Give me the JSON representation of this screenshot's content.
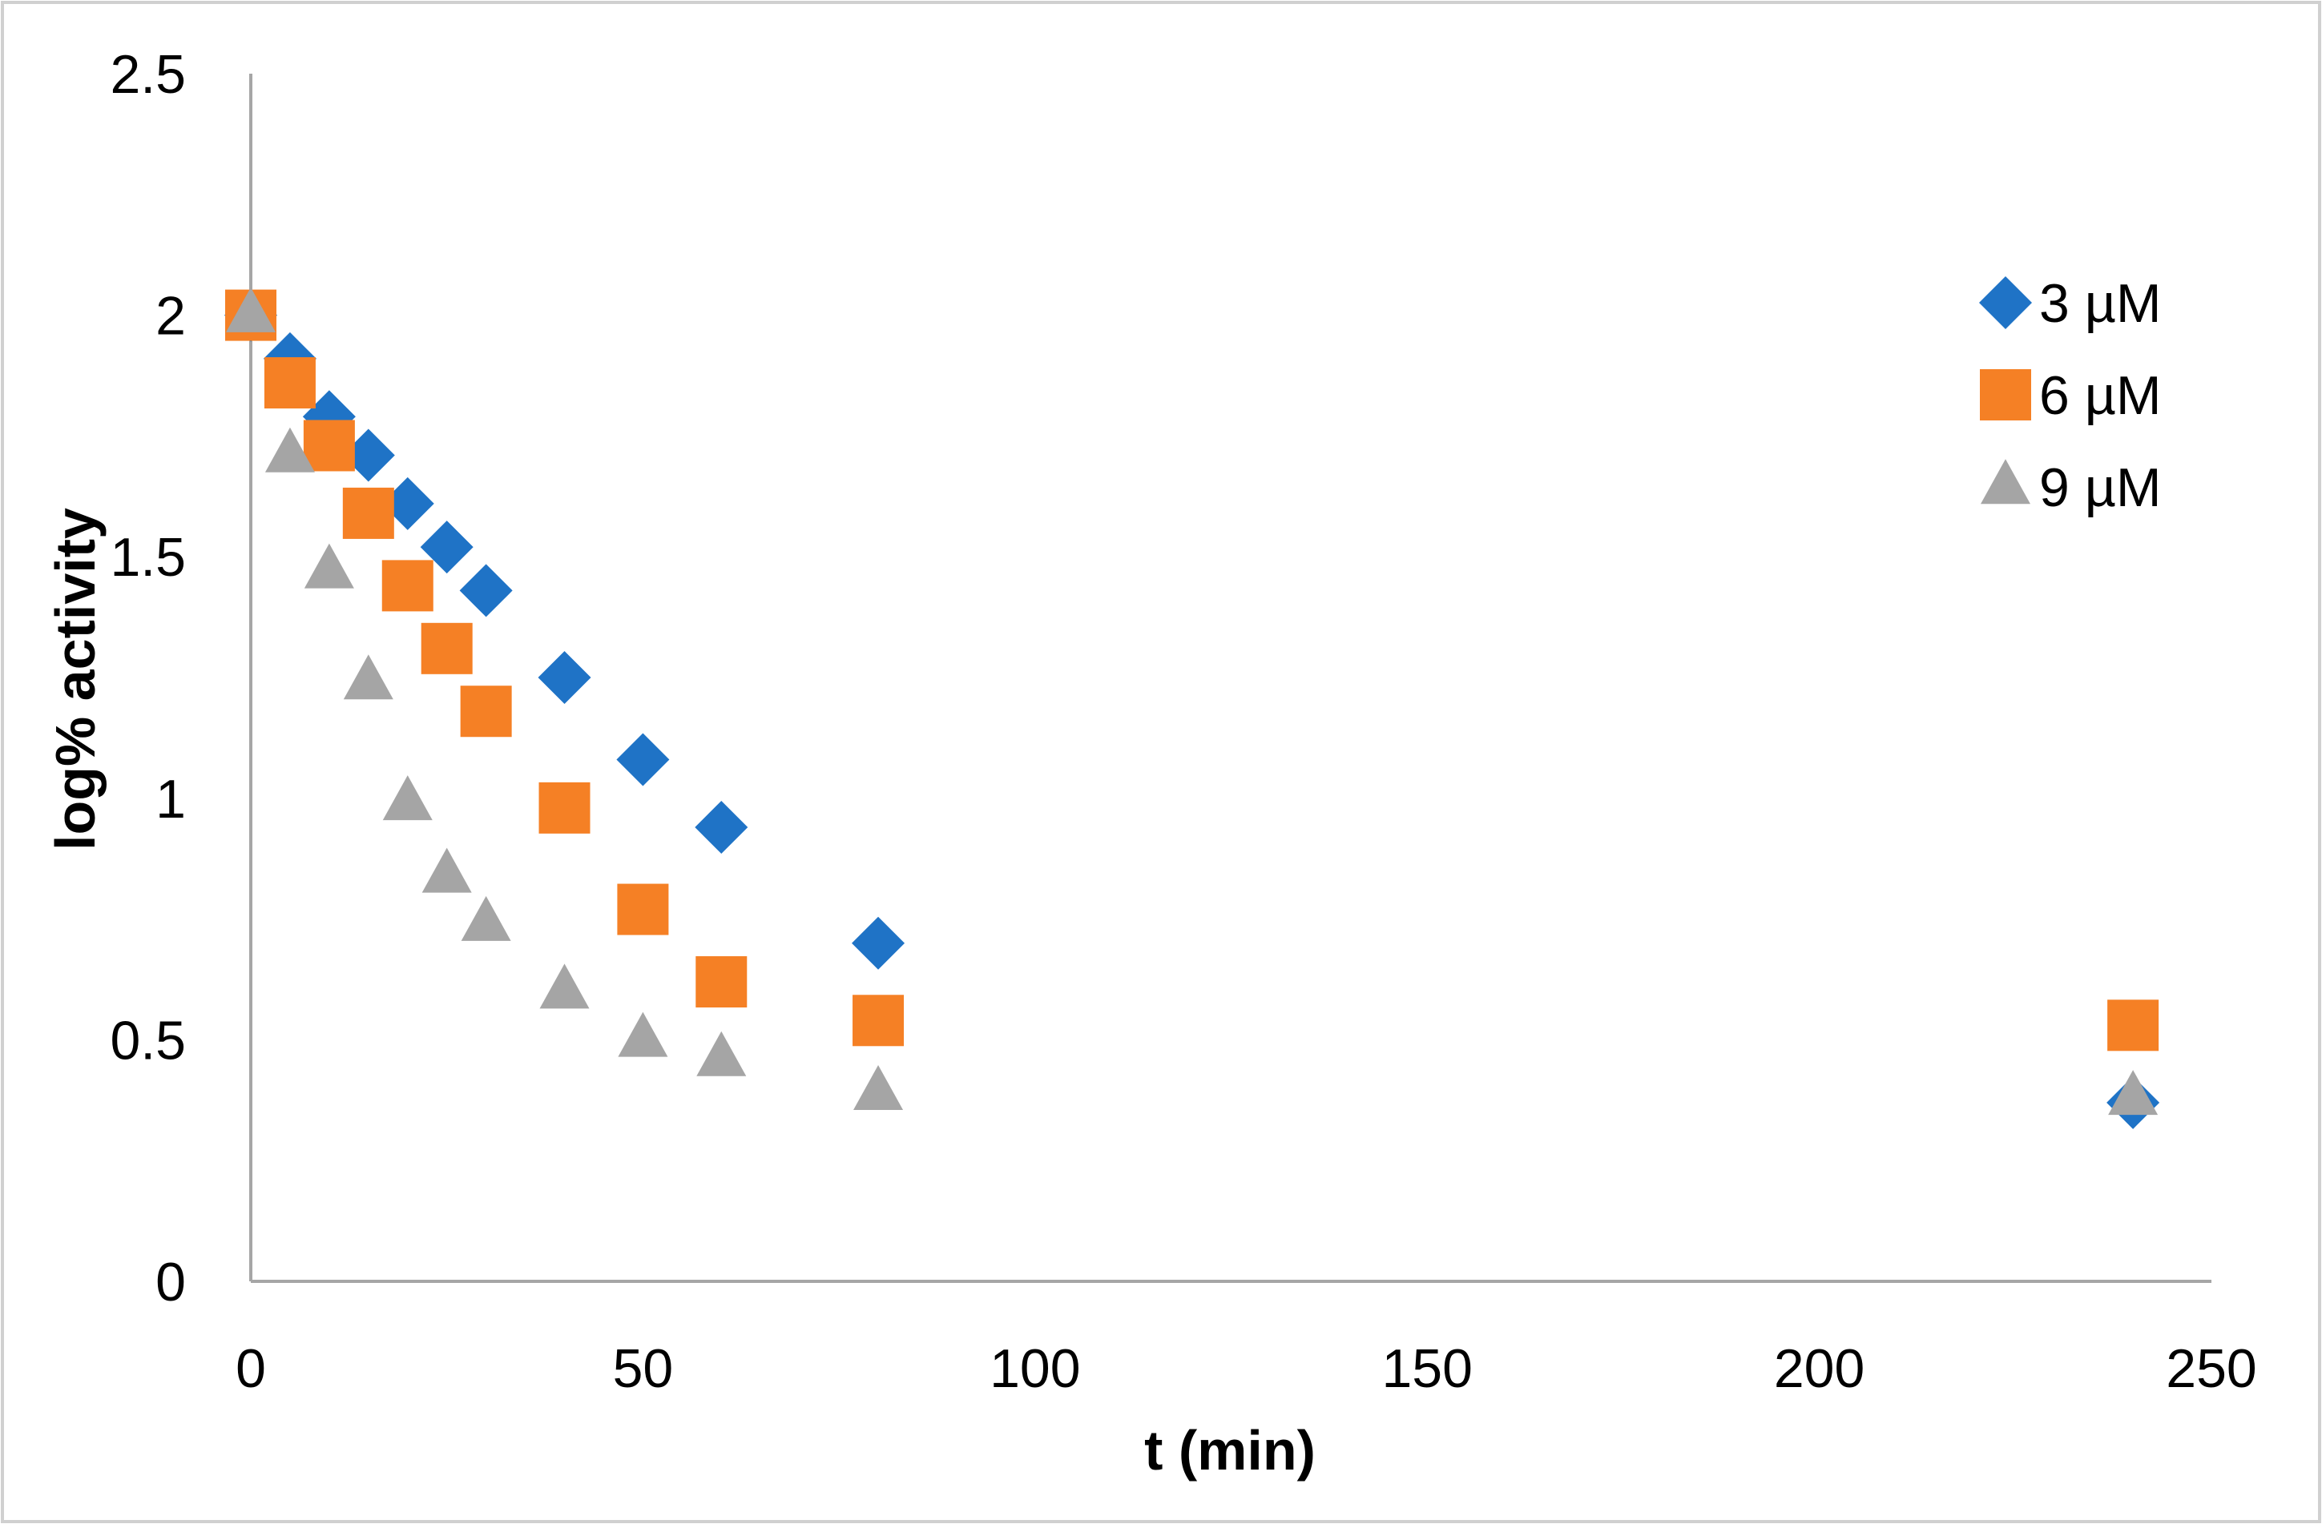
{
  "chart_data": {
    "type": "scatter",
    "title": "",
    "xlabel": "t (min)",
    "ylabel": "log% activity",
    "xlim": [
      0,
      250
    ],
    "ylim": [
      0,
      2.5
    ],
    "x_ticks": [
      0,
      50,
      100,
      150,
      200,
      250
    ],
    "y_ticks": [
      0,
      0.5,
      1,
      1.5,
      2,
      2.5
    ],
    "x_tick_labels": [
      "0",
      "50",
      "100",
      "150",
      "200",
      "250"
    ],
    "y_tick_labels": [
      "0",
      "0.5",
      "1",
      "1.5",
      "2",
      "2.5"
    ],
    "grid": false,
    "legend_position": "right",
    "series": [
      {
        "name": "3 µM",
        "marker": "diamond",
        "color": "#1f73c6",
        "x": [
          0,
          5,
          10,
          15,
          20,
          25,
          30,
          40,
          50,
          60,
          80,
          240
        ],
        "y": [
          2.0,
          1.91,
          1.79,
          1.71,
          1.61,
          1.52,
          1.43,
          1.25,
          1.08,
          0.94,
          0.7,
          0.37
        ]
      },
      {
        "name": "6 µM",
        "marker": "square",
        "color": "#f58025",
        "x": [
          0,
          5,
          10,
          15,
          20,
          25,
          30,
          40,
          50,
          60,
          80,
          240
        ],
        "y": [
          2.0,
          1.86,
          1.73,
          1.59,
          1.44,
          1.31,
          1.18,
          0.98,
          0.77,
          0.62,
          0.54,
          0.53
        ]
      },
      {
        "name": "9 µM",
        "marker": "triangle",
        "color": "#a5a5a5",
        "x": [
          0,
          5,
          10,
          15,
          20,
          25,
          30,
          40,
          50,
          60,
          80,
          240
        ],
        "y": [
          2.0,
          1.71,
          1.47,
          1.24,
          0.99,
          0.84,
          0.74,
          0.6,
          0.5,
          0.46,
          0.39,
          0.38
        ]
      }
    ]
  }
}
